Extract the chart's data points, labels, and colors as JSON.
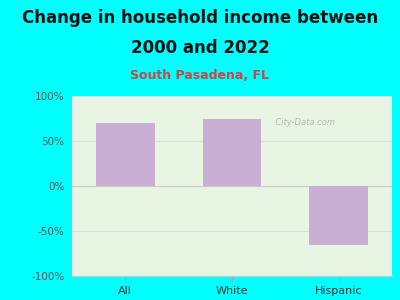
{
  "title_line1": "Change in household income between",
  "title_line2": "2000 and 2022",
  "subtitle": "South Pasadena, FL",
  "categories": [
    "All",
    "White",
    "Hispanic"
  ],
  "values": [
    70,
    75,
    -65
  ],
  "bar_color": "#c9afd4",
  "background_outer": "#00ffff",
  "background_plot_color": "#e8f5e2",
  "title_fontsize": 12,
  "subtitle_fontsize": 9,
  "subtitle_color": "#cc4444",
  "ylim": [
    -100,
    100
  ],
  "yticks": [
    -100,
    -50,
    0,
    50,
    100
  ],
  "ytick_labels": [
    "-100%",
    "-50%",
    "0%",
    "50%",
    "100%"
  ],
  "watermark": "  City-Data.com"
}
